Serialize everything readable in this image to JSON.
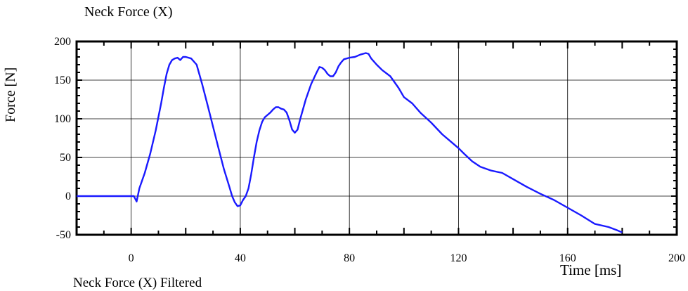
{
  "chart_data": {
    "type": "line",
    "title": "Neck Force (X)",
    "xlabel": "Time [ms]",
    "ylabel": "Force [N]",
    "xlim": [
      -20,
      200
    ],
    "ylim": [
      -50,
      200
    ],
    "x_ticks": [
      0,
      40,
      80,
      120,
      160,
      200
    ],
    "y_ticks": [
      200,
      150,
      100,
      50,
      0,
      -50
    ],
    "grid": true,
    "line_color": "#1a1aff",
    "footer_text": "Neck Force (X) Filtered",
    "series": [
      {
        "x": [
          -20,
          -10,
          0,
          1,
          2,
          3,
          5,
          7,
          9,
          11,
          12,
          13,
          14,
          15,
          16,
          17,
          18,
          19,
          20,
          22,
          24,
          26,
          28,
          30,
          32,
          34,
          36,
          37,
          38,
          39,
          40,
          41,
          42,
          43,
          44,
          45,
          46,
          47,
          48,
          49,
          50,
          51,
          52,
          53,
          54,
          55,
          56,
          57,
          58,
          59,
          60,
          61,
          62,
          64,
          66,
          68,
          69,
          70,
          71,
          72,
          73,
          74,
          75,
          76,
          77,
          78,
          80,
          82,
          84,
          86,
          87,
          88,
          90,
          92,
          95,
          98,
          100,
          103,
          106,
          110,
          114,
          118,
          120,
          122,
          125,
          128,
          132,
          136,
          140,
          145,
          150,
          155,
          160,
          165,
          170,
          175,
          178,
          180
        ],
        "y": [
          0,
          0,
          0,
          0,
          -7,
          10,
          30,
          55,
          85,
          120,
          140,
          158,
          170,
          176,
          178,
          179,
          176,
          180,
          180,
          178,
          170,
          145,
          118,
          90,
          62,
          35,
          12,
          0,
          -8,
          -13,
          -12,
          -5,
          0,
          10,
          28,
          50,
          70,
          85,
          96,
          102,
          105,
          108,
          112,
          115,
          115,
          113,
          112,
          108,
          98,
          86,
          82,
          86,
          100,
          125,
          145,
          160,
          167,
          166,
          163,
          158,
          155,
          155,
          160,
          168,
          173,
          177,
          179,
          180,
          183,
          185,
          184,
          178,
          170,
          163,
          155,
          140,
          128,
          120,
          108,
          95,
          80,
          68,
          62,
          55,
          45,
          38,
          33,
          30,
          22,
          12,
          3,
          -5,
          -15,
          -25,
          -36,
          -40,
          -44,
          -47
        ]
      }
    ]
  }
}
